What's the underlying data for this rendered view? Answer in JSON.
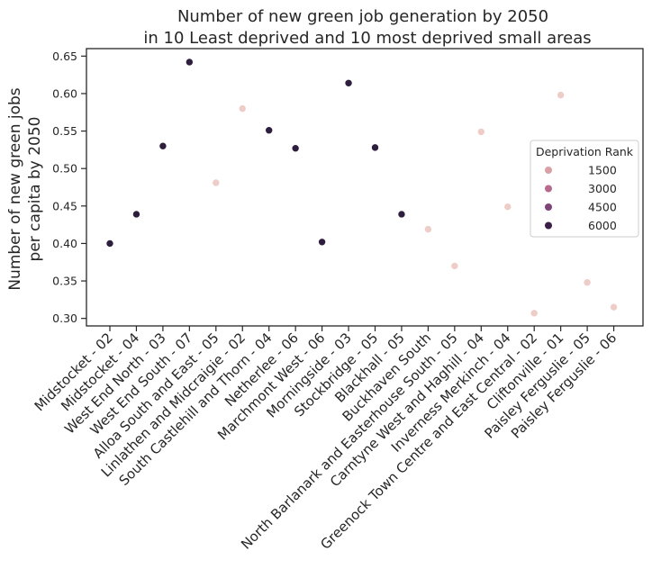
{
  "chart_data": {
    "type": "scatter",
    "title": "Number of new green job generation by 2050",
    "subtitle": "in 10 Least deprived and 10 most deprived small areas",
    "xlabel": "",
    "ylabel": "Number of new green jobs",
    "ylabel2": "per capita by 2050",
    "ylim": [
      0.29,
      0.66
    ],
    "yticks": [
      "0.30",
      "0.35",
      "0.40",
      "0.45",
      "0.50",
      "0.55",
      "0.60",
      "0.65"
    ],
    "categories": [
      "Midstocket - 02",
      "Midstocket - 04",
      "West End North - 03",
      "West End South - 07",
      "Alloa South and East - 05",
      "Linlathen and Midcraigie - 02",
      "South Castlehill and Thorn - 04",
      "Netherlee - 06",
      "Marchmont West - 06",
      "Morningside - 03",
      "Stockbridge - 05",
      "Blackhall - 05",
      "Buckhaven South",
      "North Barlanark and Easterhouse South - 05",
      "Carntyne West and Haghill - 04",
      "Inverness Merkinch - 04",
      "Greenock Town Centre and East Central - 02",
      "Cliftonville - 01",
      "Paisley Ferguslie - 05",
      "Paisley Ferguslie - 06"
    ],
    "values": [
      0.4,
      0.439,
      0.53,
      0.642,
      0.481,
      0.58,
      0.551,
      0.527,
      0.402,
      0.614,
      0.528,
      0.439,
      0.419,
      0.37,
      0.549,
      0.449,
      0.307,
      0.598,
      0.348,
      0.315
    ],
    "hue_rank": [
      6970,
      6960,
      6950,
      6940,
      5,
      6,
      6930,
      6920,
      6910,
      6900,
      6890,
      6880,
      4,
      3,
      7,
      8,
      2,
      9,
      1,
      10
    ],
    "legend": {
      "title": "Deprivation Rank",
      "position": "center-right",
      "entries": [
        {
          "label": "1500",
          "color": "#d9a0a5"
        },
        {
          "label": "3000",
          "color": "#b56a8e"
        },
        {
          "label": "4500",
          "color": "#7e4478"
        },
        {
          "label": "6000",
          "color": "#3a1f48"
        }
      ]
    },
    "colors": {
      "least_deprived": "#2d1e3e",
      "most_deprived": "#eecdc8"
    }
  }
}
